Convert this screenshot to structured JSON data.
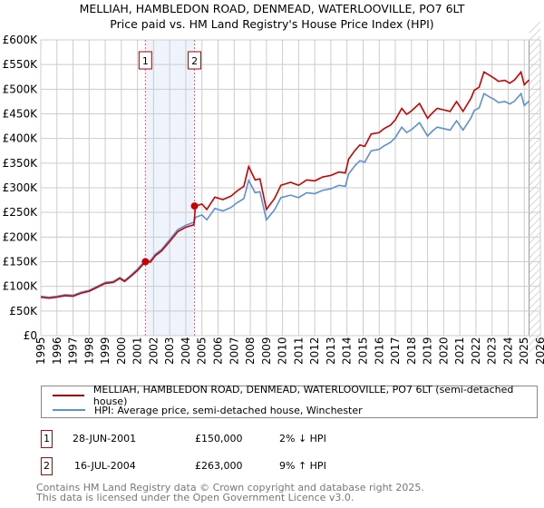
{
  "header": {
    "title": "MELLIAH, HAMBLEDON ROAD, DENMEAD, WATERLOOVILLE, PO7 6LT",
    "subtitle": "Price paid vs. HM Land Registry's House Price Index (HPI)"
  },
  "chart_data": {
    "type": "line",
    "title": "MELLIAH, HAMBLEDON ROAD, DENMEAD, WATERLOOVILLE, PO7 6LT",
    "subtitle": "Price paid vs. HM Land Registry's House Price Index (HPI)",
    "xlim": [
      1995,
      2026
    ],
    "ylim": [
      0,
      600000
    ],
    "y_ticks": [
      0,
      50000,
      100000,
      150000,
      200000,
      250000,
      300000,
      350000,
      400000,
      450000,
      500000,
      550000,
      600000
    ],
    "y_tick_labels": [
      "£0",
      "£50K",
      "£100K",
      "£150K",
      "£200K",
      "£250K",
      "£300K",
      "£350K",
      "£400K",
      "£450K",
      "£500K",
      "£550K",
      "£600K"
    ],
    "x_ticks": [
      "1995",
      "1996",
      "1997",
      "1998",
      "1999",
      "2000",
      "2001",
      "2002",
      "2003",
      "2004",
      "2005",
      "2006",
      "2007",
      "2008",
      "2009",
      "2010",
      "2011",
      "2012",
      "2013",
      "2014",
      "2015",
      "2016",
      "2017",
      "2018",
      "2019",
      "2020",
      "2021",
      "2022",
      "2023",
      "2024",
      "2025",
      "2026"
    ],
    "grid": true,
    "shaded_range": [
      2001.49,
      2004.54
    ],
    "forecast_hatch_from": 2025.3,
    "x": [
      1995.0,
      1995.5,
      1996.0,
      1996.5,
      1997.0,
      1997.5,
      1998.0,
      1998.5,
      1999.0,
      1999.5,
      1999.9,
      2000.2,
      2000.5,
      2001.0,
      2001.49,
      2001.8,
      2002.1,
      2002.5,
      2003.0,
      2003.5,
      2004.0,
      2004.5,
      2004.6,
      2005.0,
      2005.3,
      2005.8,
      2006.3,
      2006.8,
      2007.2,
      2007.6,
      2007.9,
      2008.3,
      2008.6,
      2009.0,
      2009.5,
      2009.9,
      2010.5,
      2011.0,
      2011.5,
      2012.0,
      2012.5,
      2013.0,
      2013.5,
      2013.9,
      2014.1,
      2014.5,
      2014.8,
      2015.1,
      2015.5,
      2016.0,
      2016.3,
      2016.7,
      2017.0,
      2017.4,
      2017.7,
      2018.0,
      2018.5,
      2019.0,
      2019.3,
      2019.6,
      2020.0,
      2020.4,
      2020.8,
      2021.2,
      2021.7,
      2021.9,
      2022.2,
      2022.5,
      2022.8,
      2023.1,
      2023.4,
      2023.8,
      2024.1,
      2024.4,
      2024.8,
      2025.0,
      2025.3
    ],
    "series": [
      {
        "name": "MELLIAH, HAMBLEDON ROAD, DENMEAD, WATERLOOVILLE, PO7 6LT (semi-detached house)",
        "color": "#cc0000",
        "values": [
          78000,
          76000,
          78000,
          81000,
          80000,
          86000,
          90000,
          98000,
          106000,
          108000,
          116000,
          110000,
          118000,
          132000,
          150000,
          149000,
          162000,
          172000,
          191000,
          211000,
          220000,
          225000,
          263000,
          267000,
          256000,
          281000,
          276000,
          283000,
          294000,
          303000,
          343000,
          316000,
          318000,
          256000,
          278000,
          305000,
          311000,
          305000,
          316000,
          314000,
          322000,
          325000,
          332000,
          330000,
          358000,
          376000,
          387000,
          384000,
          409000,
          412000,
          420000,
          427000,
          438000,
          461000,
          449000,
          456000,
          471000,
          441000,
          452000,
          461000,
          458000,
          455000,
          475000,
          455000,
          482000,
          498000,
          504000,
          535000,
          529000,
          523000,
          516000,
          518000,
          512000,
          519000,
          535000,
          509000,
          519000
        ]
      },
      {
        "name": "HPI: Average price, semi-detached house, Winchester",
        "color": "#5b8fd6",
        "values": [
          80000,
          78000,
          80000,
          83000,
          82000,
          88000,
          92000,
          100000,
          108000,
          110000,
          118000,
          112000,
          120000,
          135000,
          153000,
          152000,
          165000,
          175000,
          195000,
          215000,
          224000,
          230000,
          240000,
          245000,
          235000,
          258000,
          253000,
          260000,
          270000,
          278000,
          315000,
          290000,
          292000,
          235000,
          255000,
          280000,
          285000,
          280000,
          290000,
          288000,
          295000,
          298000,
          305000,
          303000,
          328000,
          345000,
          355000,
          352000,
          375000,
          378000,
          385000,
          392000,
          402000,
          423000,
          412000,
          418000,
          432000,
          405000,
          415000,
          423000,
          420000,
          417000,
          436000,
          417000,
          442000,
          457000,
          462000,
          491000,
          485000,
          480000,
          473000,
          475000,
          470000,
          476000,
          491000,
          467000,
          476000
        ]
      }
    ],
    "sales": [
      {
        "label": "1",
        "x": 2001.49,
        "value": 150000
      },
      {
        "label": "2",
        "x": 2004.54,
        "value": 263000
      }
    ]
  },
  "legend": {
    "property": "MELLIAH, HAMBLEDON ROAD, DENMEAD, WATERLOOVILLE, PO7 6LT (semi-detached house)",
    "hpi": "HPI: Average price, semi-detached house, Winchester"
  },
  "transactions": [
    {
      "num": "1",
      "date": "28-JUN-2001",
      "price": "£150,000",
      "hpi": "2% ↓ HPI"
    },
    {
      "num": "2",
      "date": "16-JUL-2004",
      "price": "£263,000",
      "hpi": "9% ↑ HPI"
    }
  ],
  "footer": {
    "line1": "Contains HM Land Registry data © Crown copyright and database right 2025.",
    "line2": "This data is licensed under the Open Government Licence v3.0."
  }
}
